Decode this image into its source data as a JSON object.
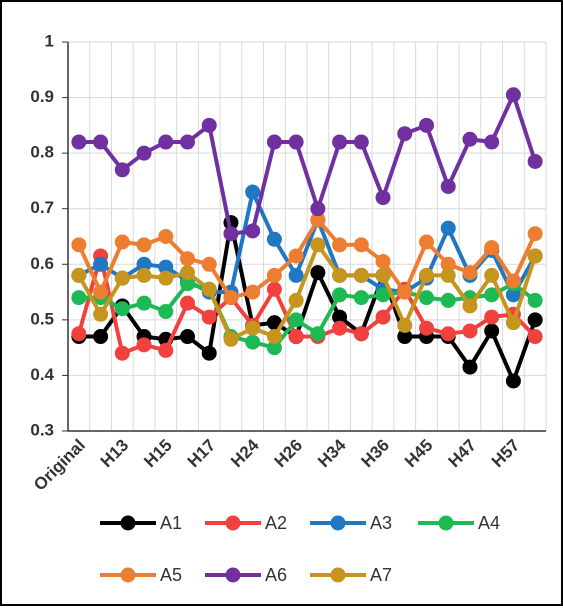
{
  "chart_data": {
    "type": "line",
    "categories": [
      "Original",
      null,
      "H13",
      null,
      "H15",
      null,
      "H17",
      null,
      "H24",
      null,
      "H26",
      null,
      "H34",
      null,
      "H36",
      null,
      "H45",
      null,
      "H47",
      null,
      "H57",
      null
    ],
    "series": [
      {
        "name": "A1",
        "color": "#000000",
        "values": [
          0.47,
          0.47,
          0.525,
          0.47,
          0.465,
          0.47,
          0.44,
          0.675,
          0.49,
          0.495,
          0.47,
          0.585,
          0.505,
          0.475,
          0.58,
          0.47,
          0.47,
          0.47,
          0.415,
          0.48,
          0.39,
          0.5
        ]
      },
      {
        "name": "A2",
        "color": "#f0413f",
        "values": [
          0.475,
          0.615,
          0.44,
          0.455,
          0.445,
          0.53,
          0.505,
          0.54,
          0.49,
          0.555,
          0.47,
          0.47,
          0.485,
          0.475,
          0.505,
          0.555,
          0.485,
          0.475,
          0.48,
          0.505,
          0.51,
          0.47
        ]
      },
      {
        "name": "A3",
        "color": "#1f78c1",
        "values": [
          0.58,
          0.6,
          0.575,
          0.6,
          0.595,
          0.57,
          0.55,
          0.55,
          0.73,
          0.645,
          0.58,
          0.68,
          0.58,
          0.58,
          0.555,
          0.55,
          0.575,
          0.665,
          0.58,
          0.625,
          0.545,
          0.615
        ]
      },
      {
        "name": "A4",
        "color": "#1db954",
        "values": [
          0.54,
          0.54,
          0.52,
          0.53,
          0.515,
          0.565,
          0.555,
          0.47,
          0.46,
          0.45,
          0.5,
          0.475,
          0.545,
          0.54,
          0.545,
          0.55,
          0.54,
          0.535,
          0.54,
          0.545,
          0.565,
          0.535
        ]
      },
      {
        "name": "A5",
        "color": "#ed7d31",
        "values": [
          0.635,
          0.55,
          0.64,
          0.635,
          0.65,
          0.61,
          0.6,
          0.54,
          0.55,
          0.58,
          0.615,
          0.68,
          0.635,
          0.635,
          0.605,
          0.55,
          0.64,
          0.6,
          0.585,
          0.63,
          0.57,
          0.655
        ]
      },
      {
        "name": "A6",
        "color": "#7030a0",
        "values": [
          0.82,
          0.82,
          0.77,
          0.8,
          0.82,
          0.82,
          0.85,
          0.655,
          0.66,
          0.82,
          0.82,
          0.7,
          0.82,
          0.82,
          0.72,
          0.835,
          0.85,
          0.74,
          0.825,
          0.82,
          0.905,
          0.785
        ]
      },
      {
        "name": "A7",
        "color": "#c5951e",
        "values": [
          0.58,
          0.51,
          0.575,
          0.58,
          0.575,
          0.585,
          0.555,
          0.465,
          0.485,
          0.47,
          0.535,
          0.635,
          0.58,
          0.58,
          0.58,
          0.49,
          0.58,
          0.58,
          0.525,
          0.58,
          0.495,
          0.615
        ]
      }
    ],
    "ylim": [
      0.3,
      1
    ],
    "yticks": [
      0.3,
      0.4,
      0.5,
      0.6,
      0.7,
      0.8,
      0.9,
      1
    ],
    "grid": true,
    "legend": "bottom"
  }
}
